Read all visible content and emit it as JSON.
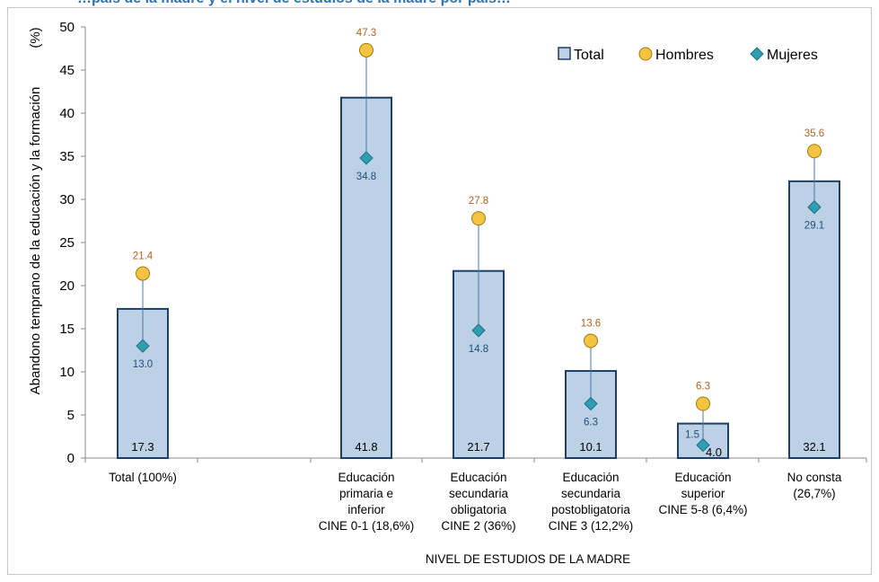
{
  "title": "…pais de la madre y el nivel de estudios de la madre por pais…",
  "chart_data": {
    "type": "bar",
    "title": "",
    "ylabel": "Abandono temprano de la educación y la formación",
    "yunit": "(%)",
    "xlabel": "NIVEL DE ESTUDIOS DE LA MADRE",
    "ylim": [
      0,
      50
    ],
    "yticks": [
      "0",
      "5",
      "10",
      "15",
      "20",
      "25",
      "30",
      "35",
      "40",
      "45",
      "50"
    ],
    "grid": false,
    "legend_position": "top-right",
    "legend": [
      "Total",
      "Hombres",
      "Mujeres"
    ],
    "categories": [
      [
        "Total (100%)"
      ],
      [
        "Educación",
        "primaria e",
        "inferior",
        "CINE 0-1 (18,6%)"
      ],
      [
        "Educación",
        "secundaria",
        "obligatoria",
        "CINE 2 (36%)"
      ],
      [
        "Educación",
        "secundaria",
        "postobligatoria",
        "CINE 3 (12,2%)"
      ],
      [
        "Educación",
        "superior",
        "CINE 5-8 (6,4%)"
      ],
      [
        "No consta",
        "(26,7%)"
      ]
    ],
    "series": [
      {
        "name": "Total",
        "values": [
          17.3,
          41.8,
          21.7,
          10.1,
          4.0,
          32.1
        ],
        "labels": [
          "17.3",
          "41.8",
          "21.7",
          "10.1",
          "4.0",
          "32.1"
        ]
      },
      {
        "name": "Hombres",
        "values": [
          21.4,
          47.3,
          27.8,
          13.6,
          6.3,
          35.6
        ],
        "labels": [
          "21.4",
          "47.3",
          "27.8",
          "13.6",
          "6.3",
          "35.6"
        ]
      },
      {
        "name": "Mujeres",
        "values": [
          13.0,
          34.8,
          14.8,
          6.3,
          1.5,
          29.1
        ],
        "labels": [
          "13.0",
          "34.8",
          "14.8",
          "6.3",
          "1.5",
          "29.1"
        ]
      }
    ],
    "colors": {
      "bar_fill": "#bdd1e6",
      "bar_stroke": "#1f3f66",
      "hombres": "#f5c342",
      "mujeres": "#2e9fb3",
      "hombres_label": "#b45f1e",
      "mujeres_label": "#1f4e79"
    }
  }
}
